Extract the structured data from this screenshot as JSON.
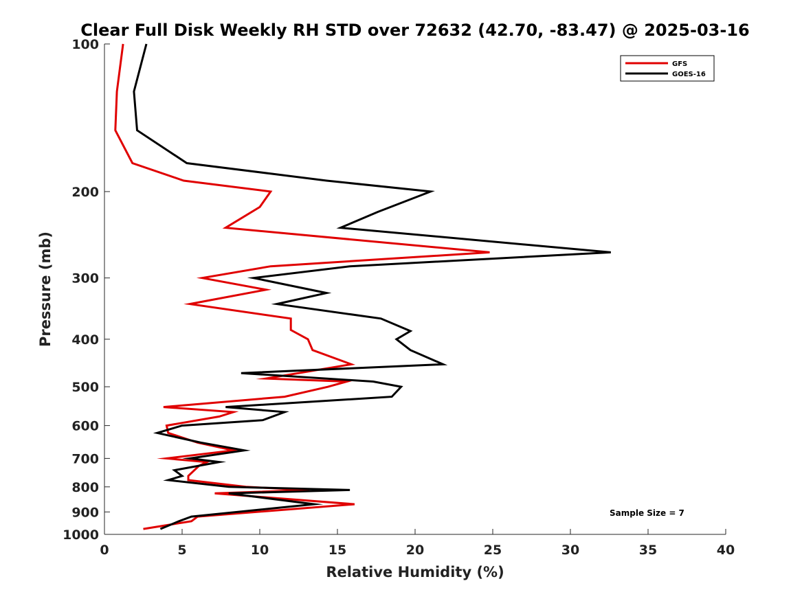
{
  "chart_data": {
    "type": "line",
    "title": "Clear Full Disk Weekly RH STD over 72632 (42.70, -83.47) @ 2025-03-16",
    "xlabel": "Relative Humidity (%)",
    "ylabel": "Pressure (mb)",
    "xlim": [
      0,
      40
    ],
    "ylim": [
      100,
      1000
    ],
    "y_scale": "log",
    "y_reversed": true,
    "grid": false,
    "legend_position": "top-right",
    "x_ticks": [
      "0",
      "5",
      "10",
      "15",
      "20",
      "25",
      "30",
      "35",
      "40"
    ],
    "y_ticks": [
      "100",
      "200",
      "300",
      "400",
      "500",
      "600",
      "700",
      "800",
      "900",
      "1000"
    ],
    "annotation": "Sample Size = 7",
    "series": [
      {
        "name": "GFS",
        "color": "#e00000",
        "points": [
          [
            1.2,
            100
          ],
          [
            0.8,
            125
          ],
          [
            0.7,
            150
          ],
          [
            1.8,
            175
          ],
          [
            5.1,
            190
          ],
          [
            10.7,
            200
          ],
          [
            10.0,
            215
          ],
          [
            7.8,
            237
          ],
          [
            24.8,
            266
          ],
          [
            10.7,
            284
          ],
          [
            6.3,
            300
          ],
          [
            10.4,
            317
          ],
          [
            5.5,
            339
          ],
          [
            12.0,
            363
          ],
          [
            12.0,
            383
          ],
          [
            13.1,
            400
          ],
          [
            13.4,
            421
          ],
          [
            15.9,
            450
          ],
          [
            10.4,
            481
          ],
          [
            15.6,
            488
          ],
          [
            14.4,
            500
          ],
          [
            11.6,
            524
          ],
          [
            3.8,
            550
          ],
          [
            8.3,
            563
          ],
          [
            7.4,
            575
          ],
          [
            4.0,
            600
          ],
          [
            4.1,
            621
          ],
          [
            6.0,
            650
          ],
          [
            8.3,
            674
          ],
          [
            4.0,
            700
          ],
          [
            6.6,
            712
          ],
          [
            6.1,
            724
          ],
          [
            5.4,
            760
          ],
          [
            5.4,
            775
          ],
          [
            9.1,
            800
          ],
          [
            13.2,
            812
          ],
          [
            7.1,
            825
          ],
          [
            16.1,
            868
          ],
          [
            6.0,
            920
          ],
          [
            5.6,
            940
          ],
          [
            2.5,
            975
          ]
        ]
      },
      {
        "name": "GOES-16",
        "color": "#000000",
        "points": [
          [
            2.7,
            100
          ],
          [
            1.9,
            125
          ],
          [
            2.1,
            150
          ],
          [
            5.3,
            175
          ],
          [
            14.3,
            190
          ],
          [
            21.0,
            200
          ],
          [
            17.6,
            220
          ],
          [
            15.2,
            237
          ],
          [
            32.6,
            266
          ],
          [
            15.8,
            284
          ],
          [
            9.6,
            300
          ],
          [
            14.3,
            322
          ],
          [
            11.1,
            339
          ],
          [
            17.8,
            363
          ],
          [
            19.7,
            385
          ],
          [
            18.8,
            400
          ],
          [
            19.7,
            421
          ],
          [
            21.8,
            450
          ],
          [
            8.8,
            469
          ],
          [
            17.3,
            488
          ],
          [
            19.1,
            500
          ],
          [
            18.5,
            524
          ],
          [
            7.8,
            550
          ],
          [
            11.6,
            563
          ],
          [
            10.2,
            585
          ],
          [
            5.0,
            600
          ],
          [
            3.4,
            621
          ],
          [
            6.2,
            650
          ],
          [
            9.0,
            674
          ],
          [
            5.5,
            700
          ],
          [
            7.4,
            712
          ],
          [
            4.5,
            740
          ],
          [
            5.0,
            760
          ],
          [
            4.1,
            775
          ],
          [
            8.0,
            800
          ],
          [
            15.8,
            812
          ],
          [
            8.0,
            825
          ],
          [
            13.5,
            868
          ],
          [
            11.6,
            880
          ],
          [
            5.6,
            920
          ],
          [
            4.8,
            940
          ],
          [
            3.6,
            975
          ]
        ]
      }
    ]
  }
}
